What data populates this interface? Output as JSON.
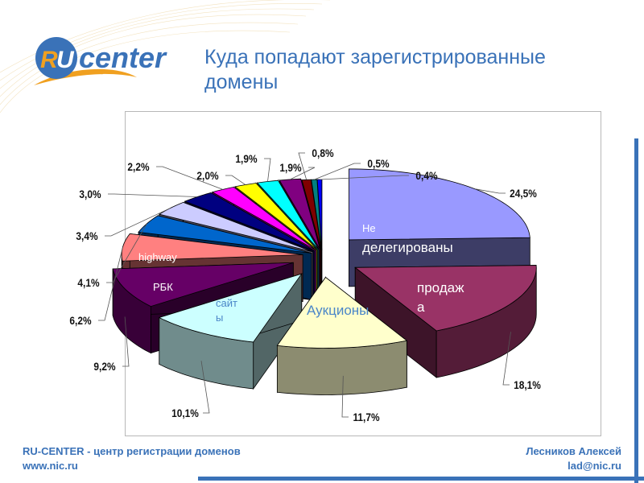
{
  "header": {
    "logo_text": "RU center",
    "title_line1": "Куда попадают зарегистрированные",
    "title_line2": "домены"
  },
  "chart_data": {
    "type": "pie",
    "style": "3d-exploded",
    "title": "Куда попадают зарегистрированные домены",
    "slices": [
      {
        "label": "Не делегированы",
        "value": 24.5,
        "value_label": "24,5%",
        "color": "#9999ff"
      },
      {
        "label": "продажа",
        "value": 18.1,
        "value_label": "18,1%",
        "color": "#993366"
      },
      {
        "label": "Аукционы",
        "value": 11.7,
        "value_label": "11,7%",
        "color": "#ffffcc"
      },
      {
        "label": "сайты",
        "value": 10.1,
        "value_label": "10,1%",
        "color": "#ccffff"
      },
      {
        "label": "РБК",
        "value": 9.2,
        "value_label": "9,2%",
        "color": "#660066"
      },
      {
        "label": "highway",
        "value": 6.2,
        "value_label": "6,2%",
        "color": "#ff8080"
      },
      {
        "label": "",
        "value": 4.1,
        "value_label": "4,1%",
        "color": "#0066cc"
      },
      {
        "label": "",
        "value": 3.4,
        "value_label": "3,4%",
        "color": "#ccccff"
      },
      {
        "label": "",
        "value": 3.0,
        "value_label": "3,0%",
        "color": "#000080"
      },
      {
        "label": "",
        "value": 2.2,
        "value_label": "2,2%",
        "color": "#ff00ff"
      },
      {
        "label": "",
        "value": 2.0,
        "value_label": "2,0%",
        "color": "#ffff00"
      },
      {
        "label": "",
        "value": 1.9,
        "value_label": "1,9%",
        "color": "#00ffff"
      },
      {
        "label": "",
        "value": 1.9,
        "value_label": "1,9%",
        "color": "#800080"
      },
      {
        "label": "",
        "value": 0.8,
        "value_label": "0,8%",
        "color": "#800000"
      },
      {
        "label": "",
        "value": 0.5,
        "value_label": "0,5%",
        "color": "#008080"
      },
      {
        "label": "",
        "value": 0.4,
        "value_label": "0,4%",
        "color": "#0000ff"
      }
    ],
    "inner_labels": {
      "ne": "Не",
      "delegirovany": "делегированы",
      "prodazh": "продаж",
      "prodazh_a": "а",
      "auktsiony": "Аукционы",
      "sayt": "сайт",
      "sayt_y": "ы",
      "rbk": "РБК",
      "highway": "highway"
    }
  },
  "footer": {
    "left_line1": "RU-CENTER - центр регистрации доменов",
    "left_line2": "www.nic.ru",
    "right_line1": "Лесников Алексей",
    "right_line2": "lad@nic.ru"
  },
  "colors": {
    "brand_blue": "#3a72b8",
    "brand_orange": "#f0a020"
  }
}
